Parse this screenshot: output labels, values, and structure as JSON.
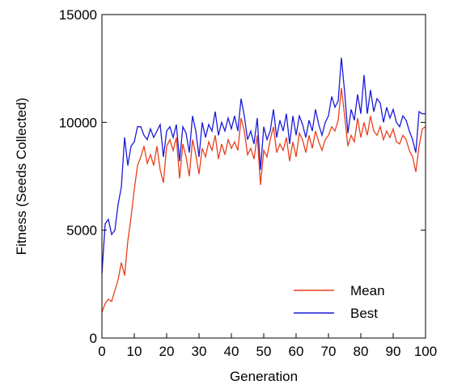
{
  "chart_data": {
    "type": "line",
    "title": "",
    "xlabel": "Generation",
    "ylabel": "Fitness (Seeds Collected)",
    "xlim": [
      0,
      100
    ],
    "ylim": [
      0,
      15000
    ],
    "xticks": [
      "0",
      "10",
      "20",
      "30",
      "40",
      "50",
      "60",
      "70",
      "80",
      "90",
      "100"
    ],
    "yticks": [
      "0",
      "5000",
      "10000",
      "15000"
    ],
    "grid": false,
    "legend_position": "bottom-right",
    "series": [
      {
        "name": "Mean",
        "color": "#e8401c",
        "x": [
          0,
          1,
          2,
          3,
          4,
          5,
          6,
          7,
          8,
          9,
          10,
          11,
          12,
          13,
          14,
          15,
          16,
          17,
          18,
          19,
          20,
          21,
          22,
          23,
          24,
          25,
          26,
          27,
          28,
          29,
          30,
          31,
          32,
          33,
          34,
          35,
          36,
          37,
          38,
          39,
          40,
          41,
          42,
          43,
          44,
          45,
          46,
          47,
          48,
          49,
          50,
          51,
          52,
          53,
          54,
          55,
          56,
          57,
          58,
          59,
          60,
          61,
          62,
          63,
          64,
          65,
          66,
          67,
          68,
          69,
          70,
          71,
          72,
          73,
          74,
          75,
          76,
          77,
          78,
          79,
          80,
          81,
          82,
          83,
          84,
          85,
          86,
          87,
          88,
          89,
          90,
          91,
          92,
          93,
          94,
          95,
          96,
          97,
          98,
          99,
          100
        ],
        "values": [
          1200,
          1600,
          1800,
          1700,
          2200,
          2700,
          3500,
          2900,
          4500,
          5600,
          6900,
          8000,
          8400,
          8900,
          8100,
          8500,
          8000,
          8900,
          7800,
          7200,
          8900,
          9200,
          8700,
          9300,
          7400,
          9000,
          8400,
          7500,
          9200,
          8500,
          7600,
          8800,
          8400,
          9100,
          8700,
          9400,
          8300,
          9000,
          8500,
          9200,
          8800,
          9100,
          8700,
          10200,
          9600,
          8500,
          8800,
          8300,
          9400,
          7100,
          8700,
          8400,
          9200,
          9800,
          8600,
          9000,
          8700,
          9300,
          8200,
          9100,
          8400,
          9500,
          9200,
          8600,
          9400,
          8800,
          9600,
          9100,
          8700,
          9200,
          9400,
          9800,
          9600,
          10100,
          11600,
          10300,
          8900,
          9400,
          9100,
          10200,
          9300,
          10000,
          9400,
          10300,
          9600,
          9400,
          9800,
          9200,
          9600,
          9300,
          9700,
          9100,
          9000,
          9400,
          9200,
          8700,
          8400,
          7700,
          8900,
          9700,
          9800
        ]
      },
      {
        "name": "Best",
        "color": "#1a1adb",
        "x": [
          0,
          1,
          2,
          3,
          4,
          5,
          6,
          7,
          8,
          9,
          10,
          11,
          12,
          13,
          14,
          15,
          16,
          17,
          18,
          19,
          20,
          21,
          22,
          23,
          24,
          25,
          26,
          27,
          28,
          29,
          30,
          31,
          32,
          33,
          34,
          35,
          36,
          37,
          38,
          39,
          40,
          41,
          42,
          43,
          44,
          45,
          46,
          47,
          48,
          49,
          50,
          51,
          52,
          53,
          54,
          55,
          56,
          57,
          58,
          59,
          60,
          61,
          62,
          63,
          64,
          65,
          66,
          67,
          68,
          69,
          70,
          71,
          72,
          73,
          74,
          75,
          76,
          77,
          78,
          79,
          80,
          81,
          82,
          83,
          84,
          85,
          86,
          87,
          88,
          89,
          90,
          91,
          92,
          93,
          94,
          95,
          96,
          97,
          98,
          99,
          100
        ],
        "values": [
          3000,
          5300,
          5500,
          4800,
          5000,
          6200,
          7000,
          9300,
          8000,
          8900,
          9100,
          9800,
          9800,
          9400,
          9200,
          9700,
          9300,
          9600,
          9900,
          8400,
          9600,
          9800,
          9300,
          9900,
          8200,
          9800,
          9500,
          8600,
          10300,
          9600,
          8400,
          10000,
          9300,
          9900,
          9600,
          10500,
          9400,
          10000,
          9600,
          10200,
          9700,
          10300,
          9600,
          11100,
          10300,
          9200,
          9600,
          9000,
          10200,
          7800,
          9800,
          9200,
          9600,
          10600,
          9300,
          10100,
          9600,
          10400,
          9000,
          10300,
          9400,
          10300,
          9900,
          9300,
          10100,
          9600,
          10600,
          9900,
          9400,
          10000,
          10300,
          11200,
          10700,
          11000,
          13000,
          11400,
          9500,
          10600,
          10100,
          11300,
          10400,
          12200,
          10400,
          11500,
          10500,
          11100,
          10900,
          10000,
          10700,
          10200,
          10600,
          10000,
          9800,
          10300,
          10100,
          9600,
          9200,
          8600,
          10500,
          10400,
          10400
        ]
      }
    ]
  }
}
